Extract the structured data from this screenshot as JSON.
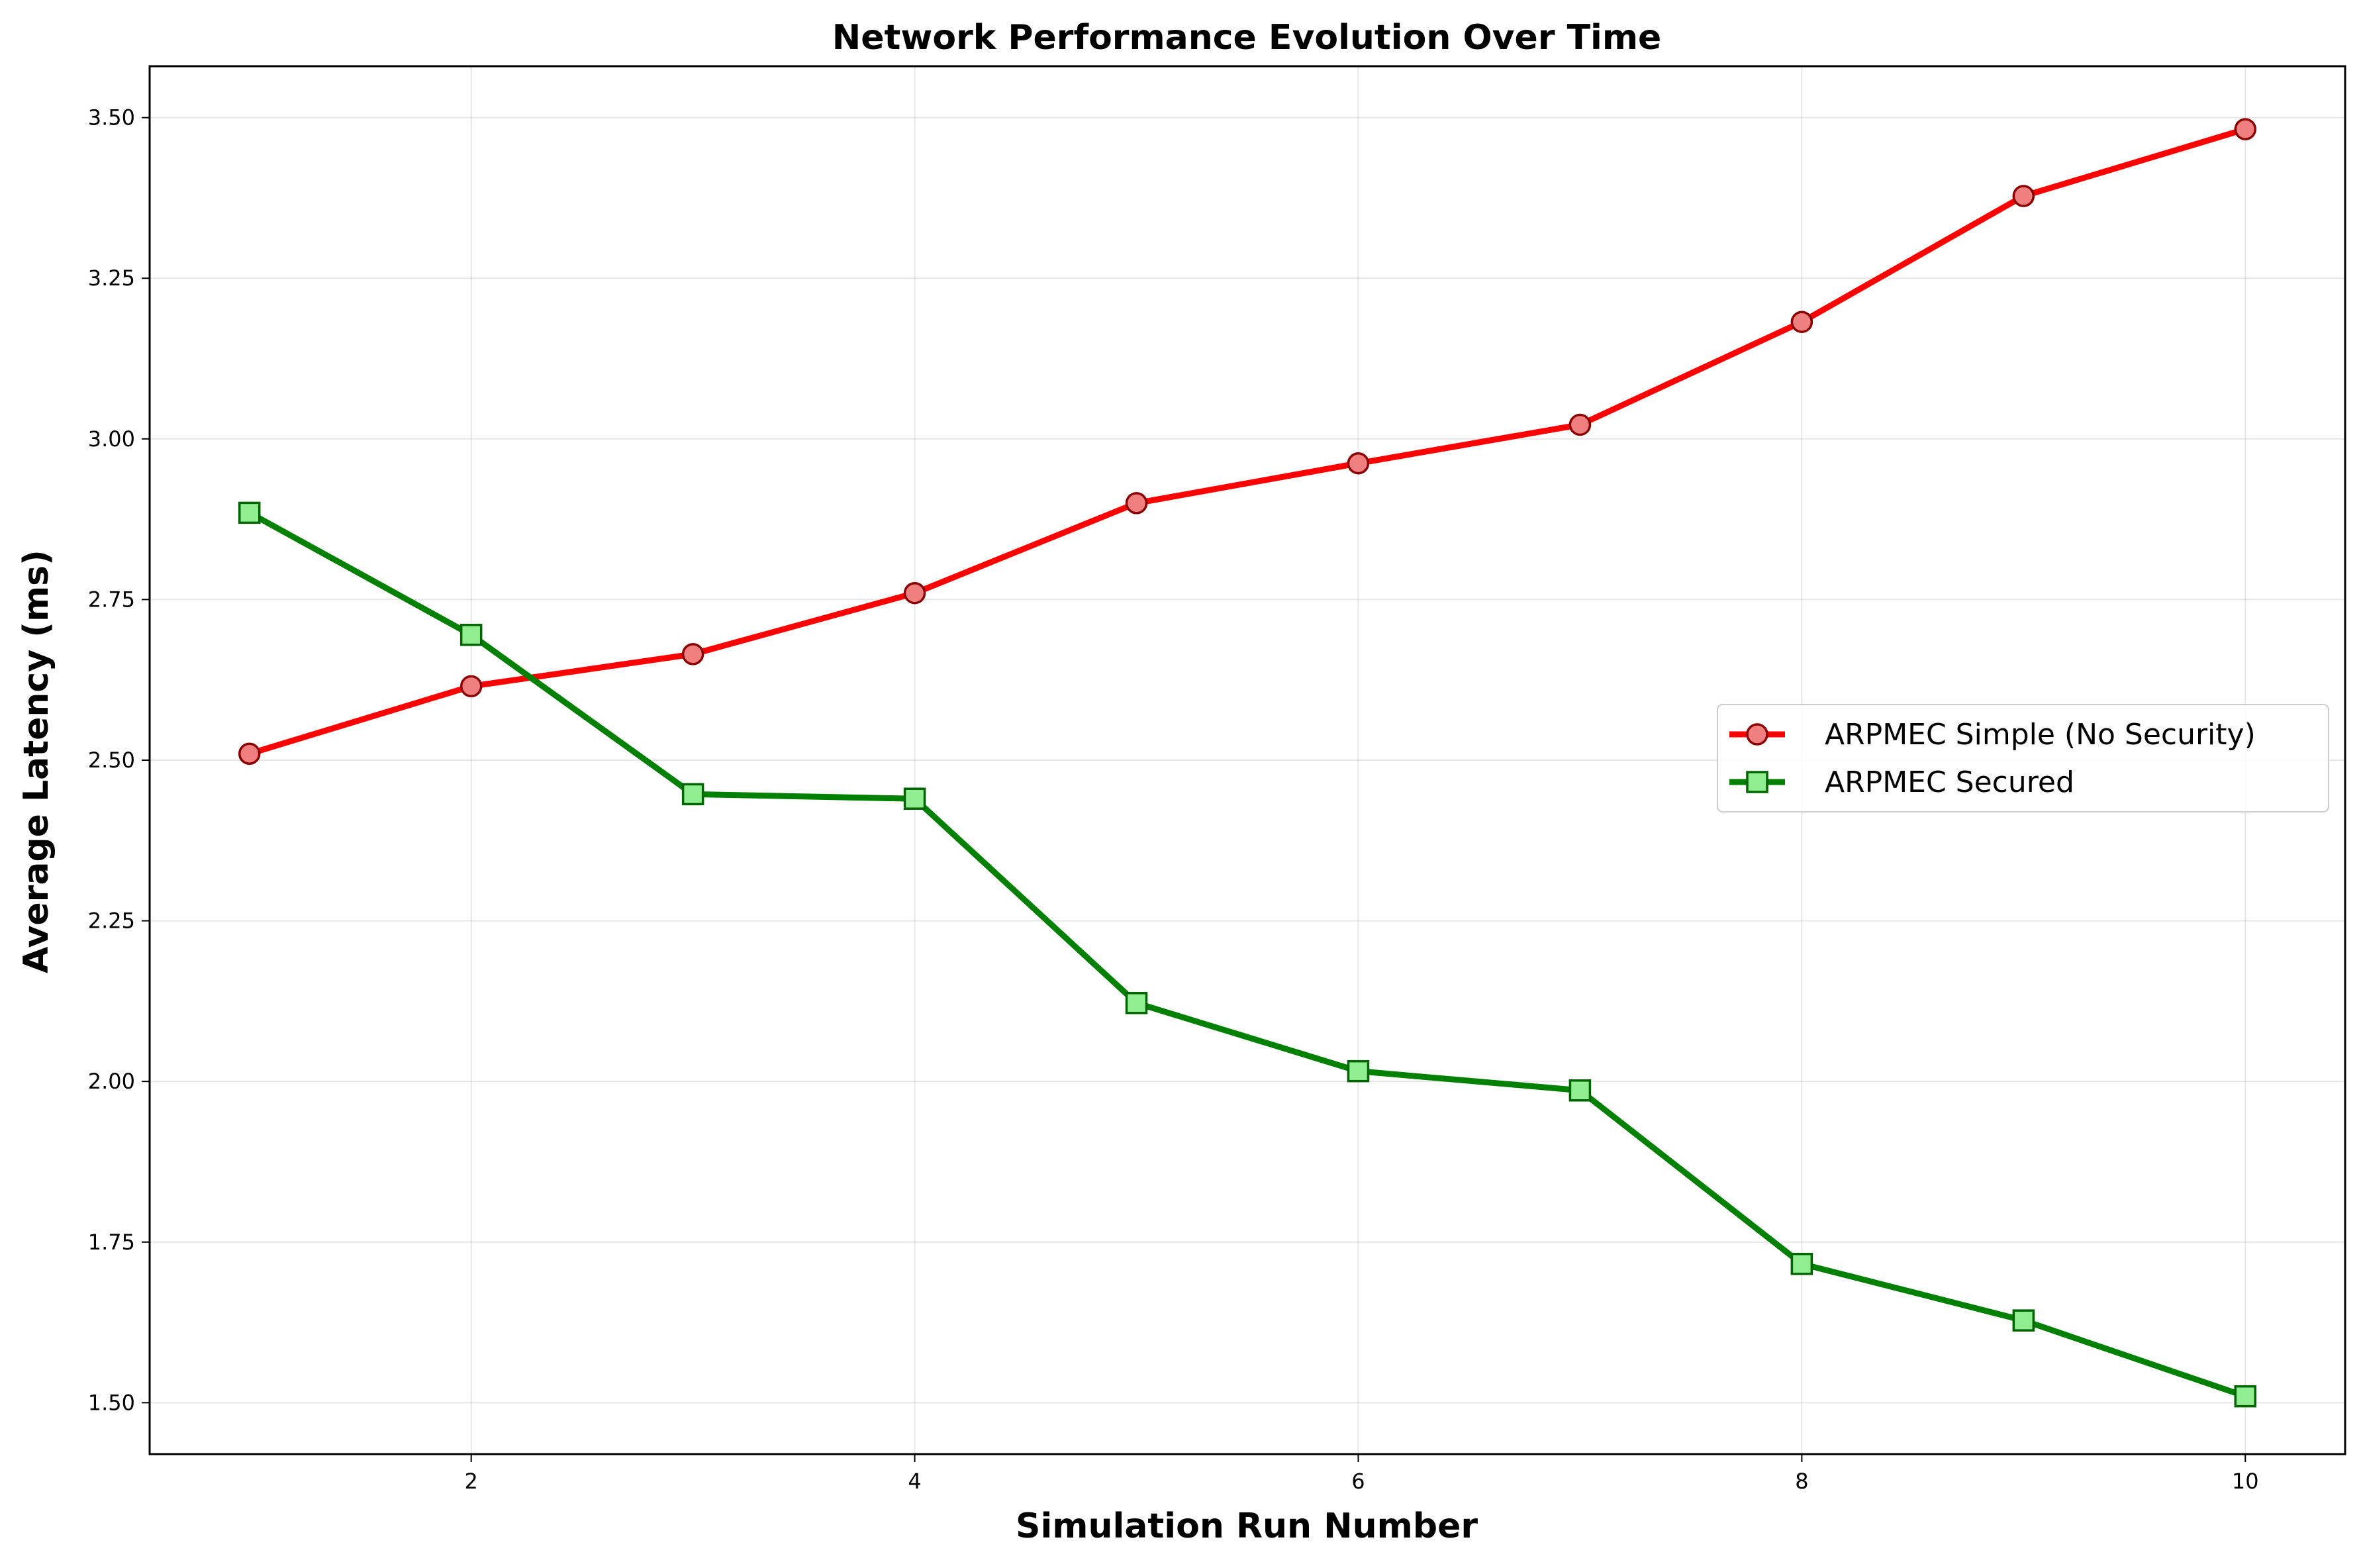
{
  "chart_data": {
    "type": "line",
    "title": "Network Performance Evolution Over Time",
    "xlabel": "Simulation Run Number",
    "ylabel": "Average Latency (ms)",
    "xlim": [
      0.55,
      10.45
    ],
    "ylim": [
      1.42,
      3.58
    ],
    "xticks": [
      2,
      4,
      6,
      8,
      10
    ],
    "yticks": [
      1.5,
      1.75,
      2.0,
      2.25,
      2.5,
      2.75,
      3.0,
      3.25,
      3.5
    ],
    "grid": true,
    "legend_position": "center-right",
    "x": [
      1,
      2,
      3,
      4,
      5,
      6,
      7,
      8,
      9,
      10
    ],
    "series": [
      {
        "name": "ARPMEC Simple (No Security)",
        "values": [
          2.51,
          2.615,
          2.665,
          2.76,
          2.9,
          2.962,
          3.022,
          3.182,
          3.378,
          3.482
        ],
        "color": "#ff0000",
        "marker": "circle",
        "marker_fill": "#f08080",
        "marker_edge": "#8b0000"
      },
      {
        "name": "ARPMEC Secured",
        "values": [
          2.885,
          2.695,
          2.447,
          2.44,
          2.122,
          2.016,
          1.986,
          1.716,
          1.628,
          1.51
        ],
        "color": "#008000",
        "marker": "square",
        "marker_fill": "#90ee90",
        "marker_edge": "#006400"
      }
    ]
  }
}
